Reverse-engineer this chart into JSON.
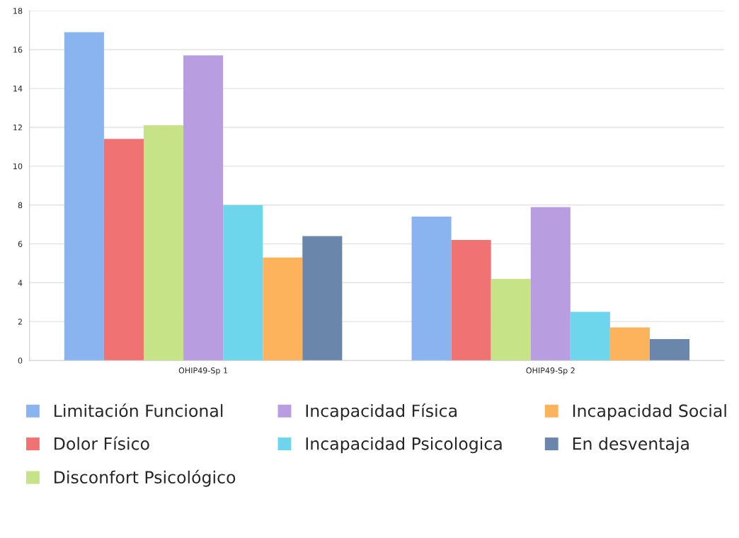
{
  "chart_data": {
    "type": "bar",
    "categories": [
      "OHIP49-Sp 1",
      "OHIP49-Sp 2"
    ],
    "series": [
      {
        "name": "Limitación Funcional",
        "color": "#8ab4f0",
        "values": [
          16.9,
          7.4
        ]
      },
      {
        "name": "Dolor Físico",
        "color": "#f07272",
        "values": [
          11.4,
          6.2
        ]
      },
      {
        "name": "Disconfort Psicológico",
        "color": "#c6e487",
        "values": [
          12.1,
          4.2
        ]
      },
      {
        "name": "Incapacidad Física",
        "color": "#b89ee0",
        "values": [
          15.7,
          7.9
        ]
      },
      {
        "name": "Incapacidad Psicologica",
        "color": "#6ed6ec",
        "values": [
          8.0,
          2.5
        ]
      },
      {
        "name": "Incapacidad Social",
        "color": "#fdb35c",
        "values": [
          5.3,
          1.7
        ]
      },
      {
        "name": "En desventaja",
        "color": "#6a86aa",
        "values": [
          6.4,
          1.1
        ]
      }
    ],
    "ylim": [
      0,
      18
    ],
    "yticks": [
      0,
      2,
      4,
      6,
      8,
      10,
      12,
      14,
      16,
      18
    ],
    "grid": "y",
    "legend": "bottom"
  }
}
